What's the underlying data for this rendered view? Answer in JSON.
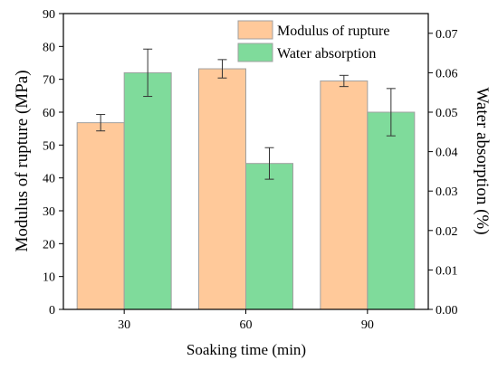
{
  "chart_data": {
    "type": "bar",
    "categories": [
      "30",
      "60",
      "90"
    ],
    "xlabel": "Soaking time (min)",
    "ylabel": "Modulus of rupture (MPa)",
    "y2label": "Water absorption (%)",
    "ylim": [
      0,
      90
    ],
    "y2lim": [
      0,
      0.075
    ],
    "yticks": [
      "0",
      "10",
      "20",
      "30",
      "40",
      "50",
      "60",
      "70",
      "80",
      "90"
    ],
    "y2ticks": [
      "0.00",
      "0.01",
      "0.02",
      "0.03",
      "0.04",
      "0.05",
      "0.06",
      "0.07"
    ],
    "legend_position": "top-right",
    "grid": false,
    "series": [
      {
        "name": "Modulus of rupture",
        "axis": "left",
        "values": [
          56.8,
          73.2,
          69.5
        ],
        "errors": [
          2.5,
          2.8,
          1.7
        ],
        "color": "#FFC99A",
        "stroke": "#a0a0a0"
      },
      {
        "name": "Water absorption",
        "axis": "right",
        "values": [
          0.06,
          0.037,
          0.05
        ],
        "errors": [
          0.006,
          0.004,
          0.006
        ],
        "color": "#7FDB9B",
        "stroke": "#a0a0a0"
      }
    ]
  }
}
